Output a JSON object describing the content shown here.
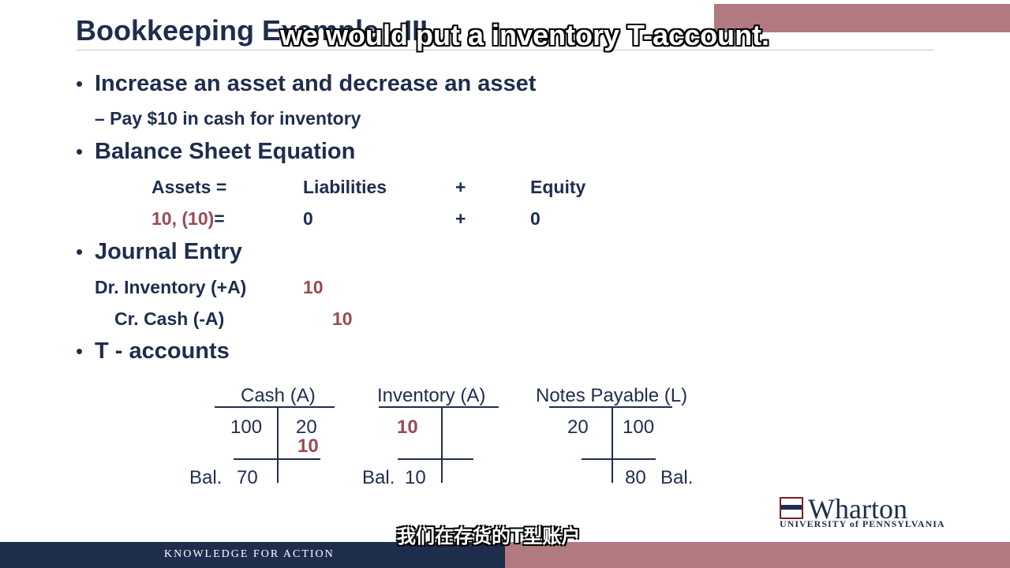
{
  "header": {
    "title": "Bookkeeping Example - III",
    "caption_en": "we would put a inventory T-account."
  },
  "bullets": {
    "b1": "Increase an asset and decrease an asset",
    "b1_sub": "– Pay $10 in cash for inventory",
    "b2": "Balance Sheet Equation",
    "b3": "Journal Entry",
    "b4": "T - accounts"
  },
  "equation": {
    "assets_label": "Assets =",
    "liabilities_label": "Liabilities",
    "plus1": "+",
    "equity_label": "Equity",
    "assets_val_a": "10,",
    "assets_val_b": "(10)",
    "assets_eq": "=",
    "liabilities_val": "0",
    "plus2": "+",
    "equity_val": "0"
  },
  "journal": {
    "dr_label": "Dr. Inventory (+A)",
    "dr_amount": "10",
    "cr_label": "Cr. Cash (-A)",
    "cr_amount": "10"
  },
  "t_accounts": {
    "cash": {
      "title": "Cash (A)",
      "debit": "100",
      "credit1": "20",
      "credit2": "10",
      "bal_label": "Bal.",
      "bal_value": "70"
    },
    "inventory": {
      "title": "Inventory (A)",
      "debit": "10",
      "bal_label": "Bal.",
      "bal_value": "10"
    },
    "notes": {
      "title": "Notes Payable (L)",
      "debit": "20",
      "credit": "100",
      "bal_value": "80",
      "bal_label": "Bal."
    }
  },
  "footer": {
    "tagline": "KNOWLEDGE FOR ACTION",
    "caption_zh": "我们在存货的T型账户"
  },
  "logo": {
    "name": "Wharton",
    "sub": "UNIVERSITY of PENNSYLVANIA"
  },
  "colors": {
    "navy": "#1f2d4d",
    "accent_red": "#9a4a55",
    "band_rose": "#b07a80"
  }
}
